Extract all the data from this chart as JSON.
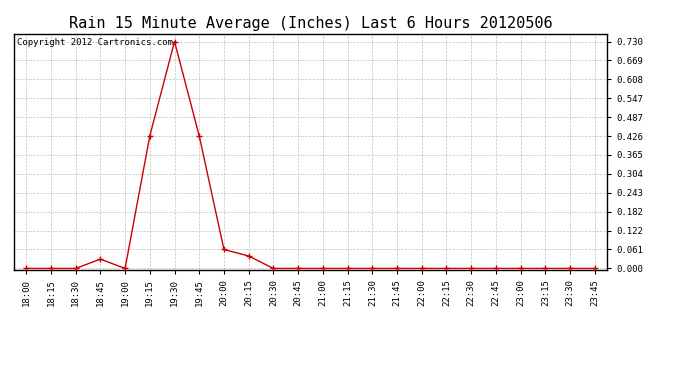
{
  "title": "Rain 15 Minute Average (Inches) Last 6 Hours 20120506",
  "copyright_text": "Copyright 2012 Cartronics.com",
  "x_labels": [
    "18:00",
    "18:15",
    "18:30",
    "18:45",
    "19:00",
    "19:15",
    "19:30",
    "19:45",
    "20:00",
    "20:15",
    "20:30",
    "20:45",
    "21:00",
    "21:15",
    "21:30",
    "21:45",
    "22:00",
    "22:15",
    "22:30",
    "22:45",
    "23:00",
    "23:15",
    "23:30",
    "23:45"
  ],
  "y_values": [
    0.0,
    0.0,
    0.0,
    0.03,
    0.0,
    0.426,
    0.73,
    0.426,
    0.061,
    0.04,
    0.0,
    0.0,
    0.0,
    0.0,
    0.0,
    0.0,
    0.0,
    0.0,
    0.0,
    0.0,
    0.0,
    0.0,
    0.0,
    0.0
  ],
  "y_ticks": [
    0.0,
    0.061,
    0.122,
    0.182,
    0.243,
    0.304,
    0.365,
    0.426,
    0.487,
    0.547,
    0.608,
    0.669,
    0.73
  ],
  "line_color": "#cc0000",
  "marker_color": "#cc0000",
  "background_color": "#ffffff",
  "grid_color": "#c0c0c0",
  "title_fontsize": 11,
  "copyright_fontsize": 6.5,
  "tick_fontsize": 6.5,
  "ylim_min": -0.005,
  "ylim_max": 0.755
}
